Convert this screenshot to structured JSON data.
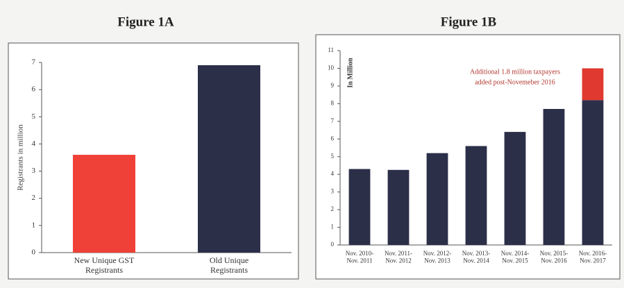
{
  "chart_data": [
    {
      "type": "bar",
      "title": "Figure 1A",
      "y_label": "Registrants in million",
      "categories": [
        "New Unique GST\nRegistrants",
        "Old Unique\nRegistrants"
      ],
      "values": [
        3.6,
        6.9
      ],
      "colors": [
        "#ef4137",
        "#2c2f48"
      ],
      "ylim": [
        0,
        7
      ],
      "yticks": [
        0,
        1,
        2,
        3,
        4,
        5,
        6,
        7
      ]
    },
    {
      "type": "stacked-bar",
      "title": "Figure 1B",
      "y_label": "In Million",
      "categories": [
        "Nov. 2010-\nNov. 2011",
        "Nov. 2011-\nNov. 2012",
        "Nov. 2012-\nNov. 2013",
        "Nov. 2013-\nNov. 2014",
        "Nov. 2014-\nNov. 2015",
        "Nov. 2015-\nNov. 2016",
        "Nov. 2016-\nNov. 2017"
      ],
      "series": [
        {
          "color": "#2c2f48",
          "values": [
            4.3,
            4.25,
            5.2,
            5.6,
            6.4,
            7.7,
            8.2
          ]
        },
        {
          "color": "#e0392f",
          "values": [
            null,
            null,
            null,
            null,
            null,
            null,
            1.8
          ]
        }
      ],
      "annotation": [
        "Additional 1.8 million taxpayers",
        "added post-Novemeber 2016"
      ],
      "ylim": [
        0,
        11
      ],
      "yticks": [
        0,
        1,
        2,
        3,
        4,
        5,
        6,
        7,
        8,
        9,
        10,
        11
      ]
    }
  ]
}
